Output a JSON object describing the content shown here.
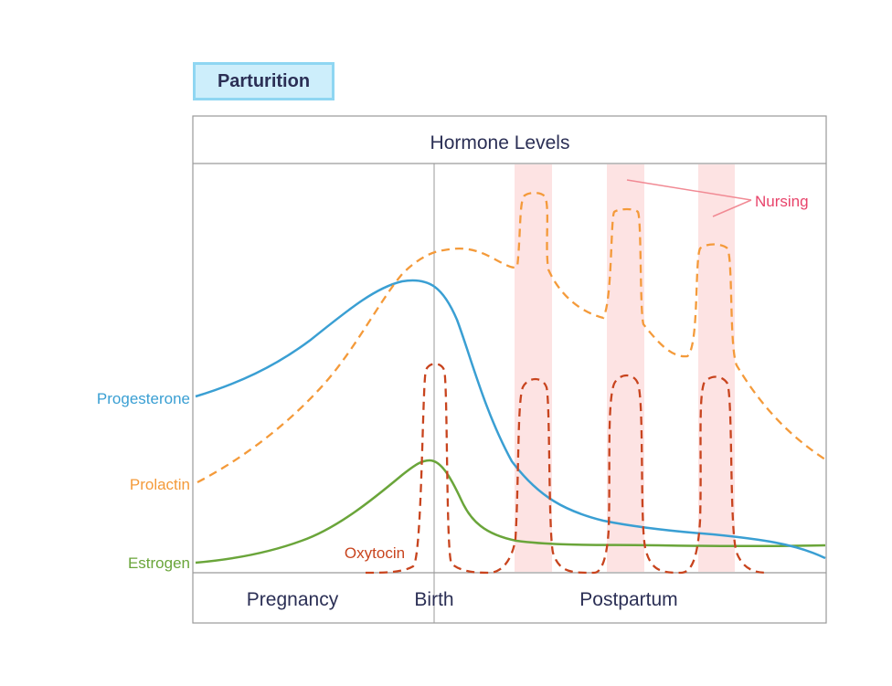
{
  "badge": {
    "label": "Parturition"
  },
  "header": {
    "title": "Hormone Levels"
  },
  "phases": {
    "pregnancy": "Pregnancy",
    "birth": "Birth",
    "postpartum": "Postpartum"
  },
  "annotations": {
    "nursing": "Nursing"
  },
  "hormones": {
    "progesterone": {
      "label": "Progesterone",
      "color": "#3a9fd3"
    },
    "prolactin": {
      "label": "Prolactin",
      "color": "#f49a3a"
    },
    "estrogen": {
      "label": "Estrogen",
      "color": "#6aa53a"
    },
    "oxytocin": {
      "label": "Oxytocin",
      "color": "#c8441e"
    }
  },
  "colors": {
    "nursing_band": "#fde3e3",
    "nursing_label": "#e8436a",
    "frame": "#9a9a9a",
    "text": "#2b2f55"
  }
}
